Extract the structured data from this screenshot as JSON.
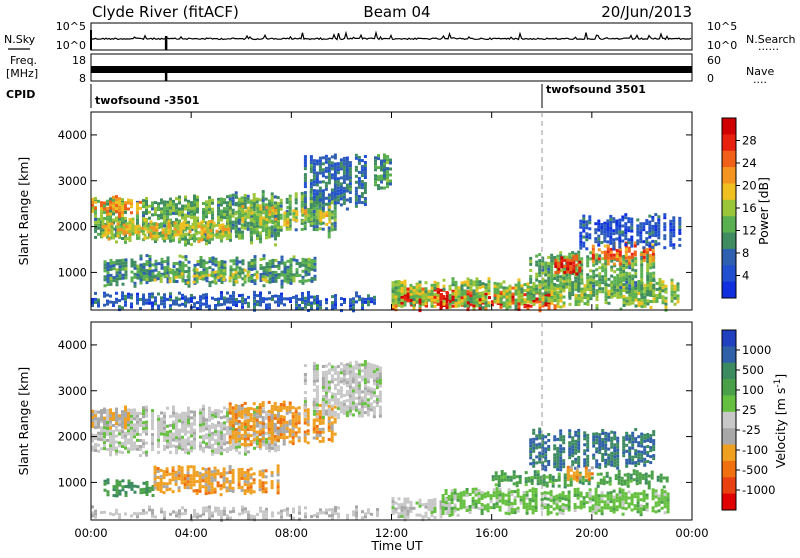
{
  "header": {
    "station": "Clyde River (fitACF)",
    "beam": "Beam 04",
    "date": "20/Jun/2013"
  },
  "noise_panel": {
    "left_label": "N.Sky",
    "left_ticks": [
      "10^5",
      "10^0"
    ],
    "right_label": "N.Search",
    "right_ticks": [
      "10^5",
      "10^0"
    ],
    "right_line": "......"
  },
  "freq_panel": {
    "left_label_1": "Freq.",
    "left_label_2": "[MHz]",
    "left_ticks": [
      "18",
      "8"
    ],
    "right_label": "Nave",
    "right_ticks": [
      "60",
      "0"
    ],
    "right_line": "...."
  },
  "cpid_panel": {
    "label": "CPID",
    "programs": [
      {
        "name": "twofsound -3501",
        "start_hour": 0
      },
      {
        "name": "twofsound 3501",
        "start_hour": 18
      }
    ]
  },
  "colors": {
    "power": [
      "#1030e0",
      "#2050d0",
      "#2f5fb0",
      "#3f8c60",
      "#5ab050",
      "#9cc63a",
      "#f0c020",
      "#f39520",
      "#f06018",
      "#e82010",
      "#d00000"
    ],
    "velocity_ramp": [
      "#2040c0",
      "#2f60a8",
      "#3c8a60",
      "#4aa048",
      "#66c040",
      "#c8c8c8",
      "#a8a8a8",
      "#f0a020",
      "#f07010",
      "#e84010",
      "#e00000"
    ]
  },
  "chart_data": [
    {
      "type": "heatmap",
      "name": "power",
      "xlabel": "Time UT",
      "ylabel": "Slant Range [km]",
      "xlim": [
        0,
        24
      ],
      "ylim": [
        180,
        4500
      ],
      "xticks": [
        "00:00",
        "04:00",
        "08:00",
        "12:00",
        "16:00",
        "20:00",
        "00:00"
      ],
      "xtick_values": [
        0,
        4,
        8,
        12,
        16,
        20,
        24
      ],
      "yticks": [
        "1000",
        "2000",
        "3000",
        "4000"
      ],
      "ytick_values": [
        1000,
        2000,
        3000,
        4000
      ],
      "colorbar": {
        "label": "Power [dB]",
        "ticks": [
          "28",
          "24",
          "20",
          "16",
          "12",
          "8",
          "4"
        ],
        "range": [
          0,
          30
        ]
      },
      "regions": [
        {
          "t0": 0.0,
          "t1": 7.5,
          "r0": 1600,
          "r1": 2700,
          "level": 12
        },
        {
          "t0": 0.0,
          "t1": 2.0,
          "r0": 2200,
          "r1": 2700,
          "level": 20
        },
        {
          "t0": 0.3,
          "t1": 5.5,
          "r0": 1700,
          "r1": 2200,
          "level": 17
        },
        {
          "t0": 5.5,
          "t1": 9.8,
          "r0": 1800,
          "r1": 2800,
          "level": 11
        },
        {
          "t0": 6.0,
          "t1": 9.5,
          "r0": 2000,
          "r1": 2500,
          "level": 16
        },
        {
          "t0": 8.5,
          "t1": 11.0,
          "r0": 2400,
          "r1": 3600,
          "level": 7
        },
        {
          "t0": 0.5,
          "t1": 9.0,
          "r0": 700,
          "r1": 1400,
          "level": 10
        },
        {
          "t0": 2.5,
          "t1": 7.0,
          "r0": 750,
          "r1": 1100,
          "level": 15
        },
        {
          "t0": 0.0,
          "t1": 11.5,
          "r0": 180,
          "r1": 600,
          "level": 6
        },
        {
          "t0": 12.0,
          "t1": 18.5,
          "r0": 180,
          "r1": 700,
          "level": 25
        },
        {
          "t0": 12.5,
          "t1": 16.5,
          "r0": 250,
          "r1": 600,
          "level": 28
        },
        {
          "t0": 12.0,
          "t1": 23.5,
          "r0": 200,
          "r1": 900,
          "level": 14
        },
        {
          "t0": 17.5,
          "t1": 22.5,
          "r0": 500,
          "r1": 1500,
          "level": 12
        },
        {
          "t0": 18.5,
          "t1": 19.5,
          "r0": 900,
          "r1": 1400,
          "level": 26
        },
        {
          "t0": 20.0,
          "t1": 22.5,
          "r0": 1200,
          "r1": 1700,
          "level": 22
        },
        {
          "t0": 19.5,
          "t1": 23.5,
          "r0": 1500,
          "r1": 2300,
          "level": 5
        },
        {
          "t0": 11.3,
          "t1": 12.0,
          "r0": 2800,
          "r1": 3700,
          "level": 10
        }
      ]
    },
    {
      "type": "heatmap",
      "name": "velocity",
      "xlabel": "Time UT",
      "ylabel": "Slant Range [km]",
      "xlim": [
        0,
        24
      ],
      "ylim": [
        180,
        4500
      ],
      "xticks": [
        "00:00",
        "04:00",
        "08:00",
        "12:00",
        "16:00",
        "20:00",
        "00:00"
      ],
      "xtick_values": [
        0,
        4,
        8,
        12,
        16,
        20,
        24
      ],
      "yticks": [
        "1000",
        "2000",
        "3000",
        "4000"
      ],
      "ytick_values": [
        1000,
        2000,
        3000,
        4000
      ],
      "colorbar": {
        "label": "Velocity [m s^-1]",
        "ticks": [
          "1000",
          "500",
          "100",
          "25",
          "-25",
          "-100",
          "-500",
          "-1000"
        ]
      },
      "regions": [
        {
          "t0": 0.0,
          "t1": 7.5,
          "r0": 1600,
          "r1": 2700,
          "vel": 0
        },
        {
          "t0": 0.0,
          "t1": 1.5,
          "r0": 2200,
          "r1": 2700,
          "vel": -300
        },
        {
          "t0": 5.5,
          "t1": 9.8,
          "r0": 1800,
          "r1": 2800,
          "vel": -400
        },
        {
          "t0": 8.5,
          "t1": 11.5,
          "r0": 2400,
          "r1": 3700,
          "vel": 0
        },
        {
          "t0": 0.5,
          "t1": 2.5,
          "r0": 700,
          "r1": 1100,
          "vel": 500
        },
        {
          "t0": 2.5,
          "t1": 7.5,
          "r0": 750,
          "r1": 1400,
          "vel": -400
        },
        {
          "t0": 0.0,
          "t1": 11.5,
          "r0": 180,
          "r1": 500,
          "vel": -50
        },
        {
          "t0": 12.0,
          "t1": 14.5,
          "r0": 180,
          "r1": 700,
          "vel": 0
        },
        {
          "t0": 14.0,
          "t1": 23.0,
          "r0": 300,
          "r1": 900,
          "vel": 200
        },
        {
          "t0": 16.0,
          "t1": 23.0,
          "r0": 900,
          "r1": 1300,
          "vel": 400
        },
        {
          "t0": 17.5,
          "t1": 22.5,
          "r0": 1300,
          "r1": 2200,
          "vel": 700
        },
        {
          "t0": 19.0,
          "t1": 20.0,
          "r0": 1000,
          "r1": 1400,
          "vel": -400
        }
      ]
    }
  ],
  "xaxis_label": "Time UT"
}
